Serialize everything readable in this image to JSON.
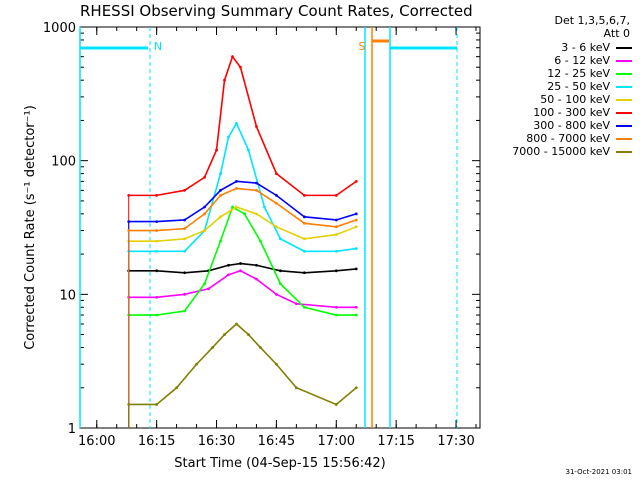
{
  "chart_data": {
    "type": "line",
    "title": "RHESSI Observing Summary Count Rates, Corrected",
    "xlabel": "Start Time (04-Sep-15 15:56:42)",
    "ylabel": "Corrected Count Rate (s⁻¹ detector⁻¹)",
    "yscale": "log",
    "ylim": [
      1,
      1000
    ],
    "xlim_minutes": [
      -4.2,
      96
    ],
    "x_ticks": [
      "16:00",
      "16:15",
      "16:30",
      "16:45",
      "17:00",
      "17:15",
      "17:30"
    ],
    "y_ticks": [
      "1",
      "10",
      "100",
      "1000"
    ],
    "detector_info": [
      "Det 1,3,5,6,7,",
      "Att 0"
    ],
    "annotations": [
      {
        "text": "N",
        "x": "16:16",
        "color": "#00e5ff"
      },
      {
        "text": "S",
        "x": "17:10",
        "color": "#ff8000"
      }
    ],
    "series": [
      {
        "name": "3 - 6 keV",
        "color": "#000000",
        "x": [
          "16:08",
          "16:15",
          "16:22",
          "16:28",
          "16:33",
          "16:36",
          "16:40",
          "16:46",
          "16:52",
          "17:00",
          "17:05"
        ],
        "values": [
          15,
          15,
          14.5,
          15,
          16.5,
          17,
          16.5,
          15,
          14.5,
          15,
          15.5
        ]
      },
      {
        "name": "6 - 12 keV",
        "color": "#ff00ff",
        "x": [
          "16:08",
          "16:15",
          "16:22",
          "16:28",
          "16:33",
          "16:36",
          "16:40",
          "16:45",
          "16:50",
          "17:00",
          "17:05"
        ],
        "values": [
          9.5,
          9.5,
          10,
          11,
          14,
          15,
          13,
          10,
          8.5,
          8,
          8
        ]
      },
      {
        "name": "12 - 25 keV",
        "color": "#00ff00",
        "x": [
          "16:08",
          "16:15",
          "16:22",
          "16:27",
          "16:31",
          "16:34",
          "16:37",
          "16:41",
          "16:46",
          "16:52",
          "17:00",
          "17:05"
        ],
        "values": [
          7,
          7,
          7.5,
          12,
          25,
          45,
          40,
          25,
          12,
          8,
          7,
          7
        ]
      },
      {
        "name": "25 - 50 keV",
        "color": "#00e5ff",
        "x": [
          "16:08",
          "16:15",
          "16:22",
          "16:27",
          "16:31",
          "16:33",
          "16:35",
          "16:38",
          "16:42",
          "16:46",
          "16:52",
          "17:00",
          "17:05"
        ],
        "values": [
          21,
          21,
          21,
          30,
          80,
          150,
          190,
          120,
          45,
          26,
          21,
          21,
          22
        ]
      },
      {
        "name": "50 - 100 keV",
        "color": "#e5d000",
        "x": [
          "16:08",
          "16:15",
          "16:22",
          "16:27",
          "16:31",
          "16:35",
          "16:40",
          "16:45",
          "16:52",
          "17:00",
          "17:05"
        ],
        "values": [
          25,
          25,
          26,
          30,
          38,
          45,
          40,
          32,
          26,
          28,
          32
        ]
      },
      {
        "name": "100 - 300 keV",
        "color": "#ff0000",
        "x": [
          "16:08",
          "16:15",
          "16:22",
          "16:27",
          "16:30",
          "16:32",
          "16:34",
          "16:36",
          "16:40",
          "16:45",
          "16:52",
          "17:00",
          "17:05"
        ],
        "values": [
          55,
          55,
          60,
          75,
          120,
          400,
          600,
          500,
          180,
          80,
          55,
          55,
          70
        ]
      },
      {
        "name": "300 - 800 keV",
        "color": "#0000ff",
        "x": [
          "16:08",
          "16:15",
          "16:22",
          "16:27",
          "16:31",
          "16:35",
          "16:40",
          "16:45",
          "16:52",
          "17:00",
          "17:05"
        ],
        "values": [
          35,
          35,
          36,
          45,
          60,
          70,
          68,
          55,
          38,
          36,
          40
        ]
      },
      {
        "name": "800 - 7000 keV",
        "color": "#ff8000",
        "x": [
          "16:08",
          "16:15",
          "16:22",
          "16:27",
          "16:31",
          "16:35",
          "16:40",
          "16:45",
          "16:52",
          "17:00",
          "17:05"
        ],
        "values": [
          30,
          30,
          31,
          40,
          55,
          62,
          60,
          48,
          34,
          32,
          36
        ]
      },
      {
        "name": "7000 - 15000 keV",
        "color": "#808000",
        "x": [
          "16:08",
          "16:15",
          "16:20",
          "16:25",
          "16:29",
          "16:32",
          "16:35",
          "16:38",
          "16:41",
          "16:45",
          "16:50",
          "17:00",
          "17:05"
        ],
        "values": [
          1.5,
          1.5,
          2,
          3,
          4,
          5,
          6,
          5,
          4,
          3,
          2,
          1.5,
          2
        ]
      }
    ]
  },
  "footer_date": "31-Oct-2021 03:01"
}
